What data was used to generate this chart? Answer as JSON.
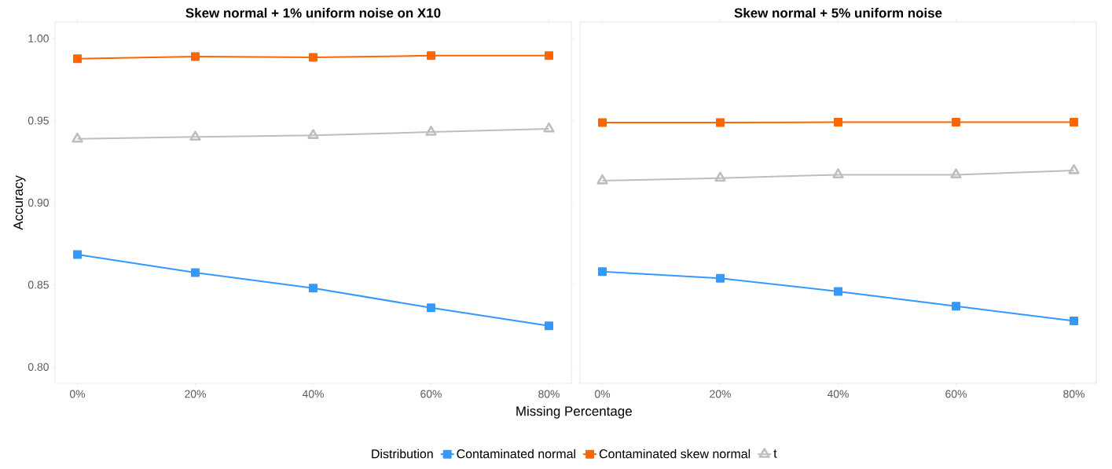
{
  "chart_data": [
    {
      "type": "line",
      "title": "Skew normal + 1% uniform noise on X10",
      "xlabel": "Missing Percentage",
      "ylabel": "Accuracy",
      "legend_title": "Distribution",
      "legend": "bottom",
      "grid": false,
      "categories": [
        "0%",
        "20%",
        "40%",
        "60%",
        "80%"
      ],
      "ylim": [
        0.79,
        1.01
      ],
      "yticks": [
        {
          "value": 0.8,
          "label": "0.80"
        },
        {
          "value": 0.85,
          "label": "0.85"
        },
        {
          "value": 0.9,
          "label": "0.90"
        },
        {
          "value": 0.95,
          "label": "0.95"
        },
        {
          "value": 1.0,
          "label": "1.00"
        }
      ],
      "series": [
        {
          "name": "Contaminated normal",
          "color": "#3399ff",
          "marker": "square",
          "values": [
            0.8684,
            0.8574,
            0.848,
            0.836,
            0.825
          ]
        },
        {
          "name": "Contaminated skew normal",
          "color": "#ff6600",
          "marker": "square",
          "values": [
            0.9876,
            0.989,
            0.9885,
            0.9895,
            0.9895
          ]
        },
        {
          "name": "t",
          "color": "#bebebe",
          "marker": "triangle",
          "values": [
            0.9388,
            0.94,
            0.941,
            0.943,
            0.945
          ]
        }
      ]
    },
    {
      "type": "line",
      "title": "Skew normal + 5% uniform noise",
      "tick_labels": "x",
      "grid": false,
      "categories": [
        "0%",
        "20%",
        "40%",
        "60%",
        "80%"
      ],
      "ylim": [
        0.79,
        1.01
      ],
      "series": [
        {
          "color": "#3399ff",
          "marker": "square",
          "values": [
            0.858,
            0.854,
            0.846,
            0.837,
            0.828
          ]
        },
        {
          "color": "#ff6600",
          "marker": "square",
          "values": [
            0.9488,
            0.9488,
            0.949,
            0.949,
            0.949
          ]
        },
        {
          "color": "#bebebe",
          "marker": "triangle",
          "values": [
            0.9134,
            0.915,
            0.917,
            0.917,
            0.9196
          ]
        }
      ]
    }
  ]
}
